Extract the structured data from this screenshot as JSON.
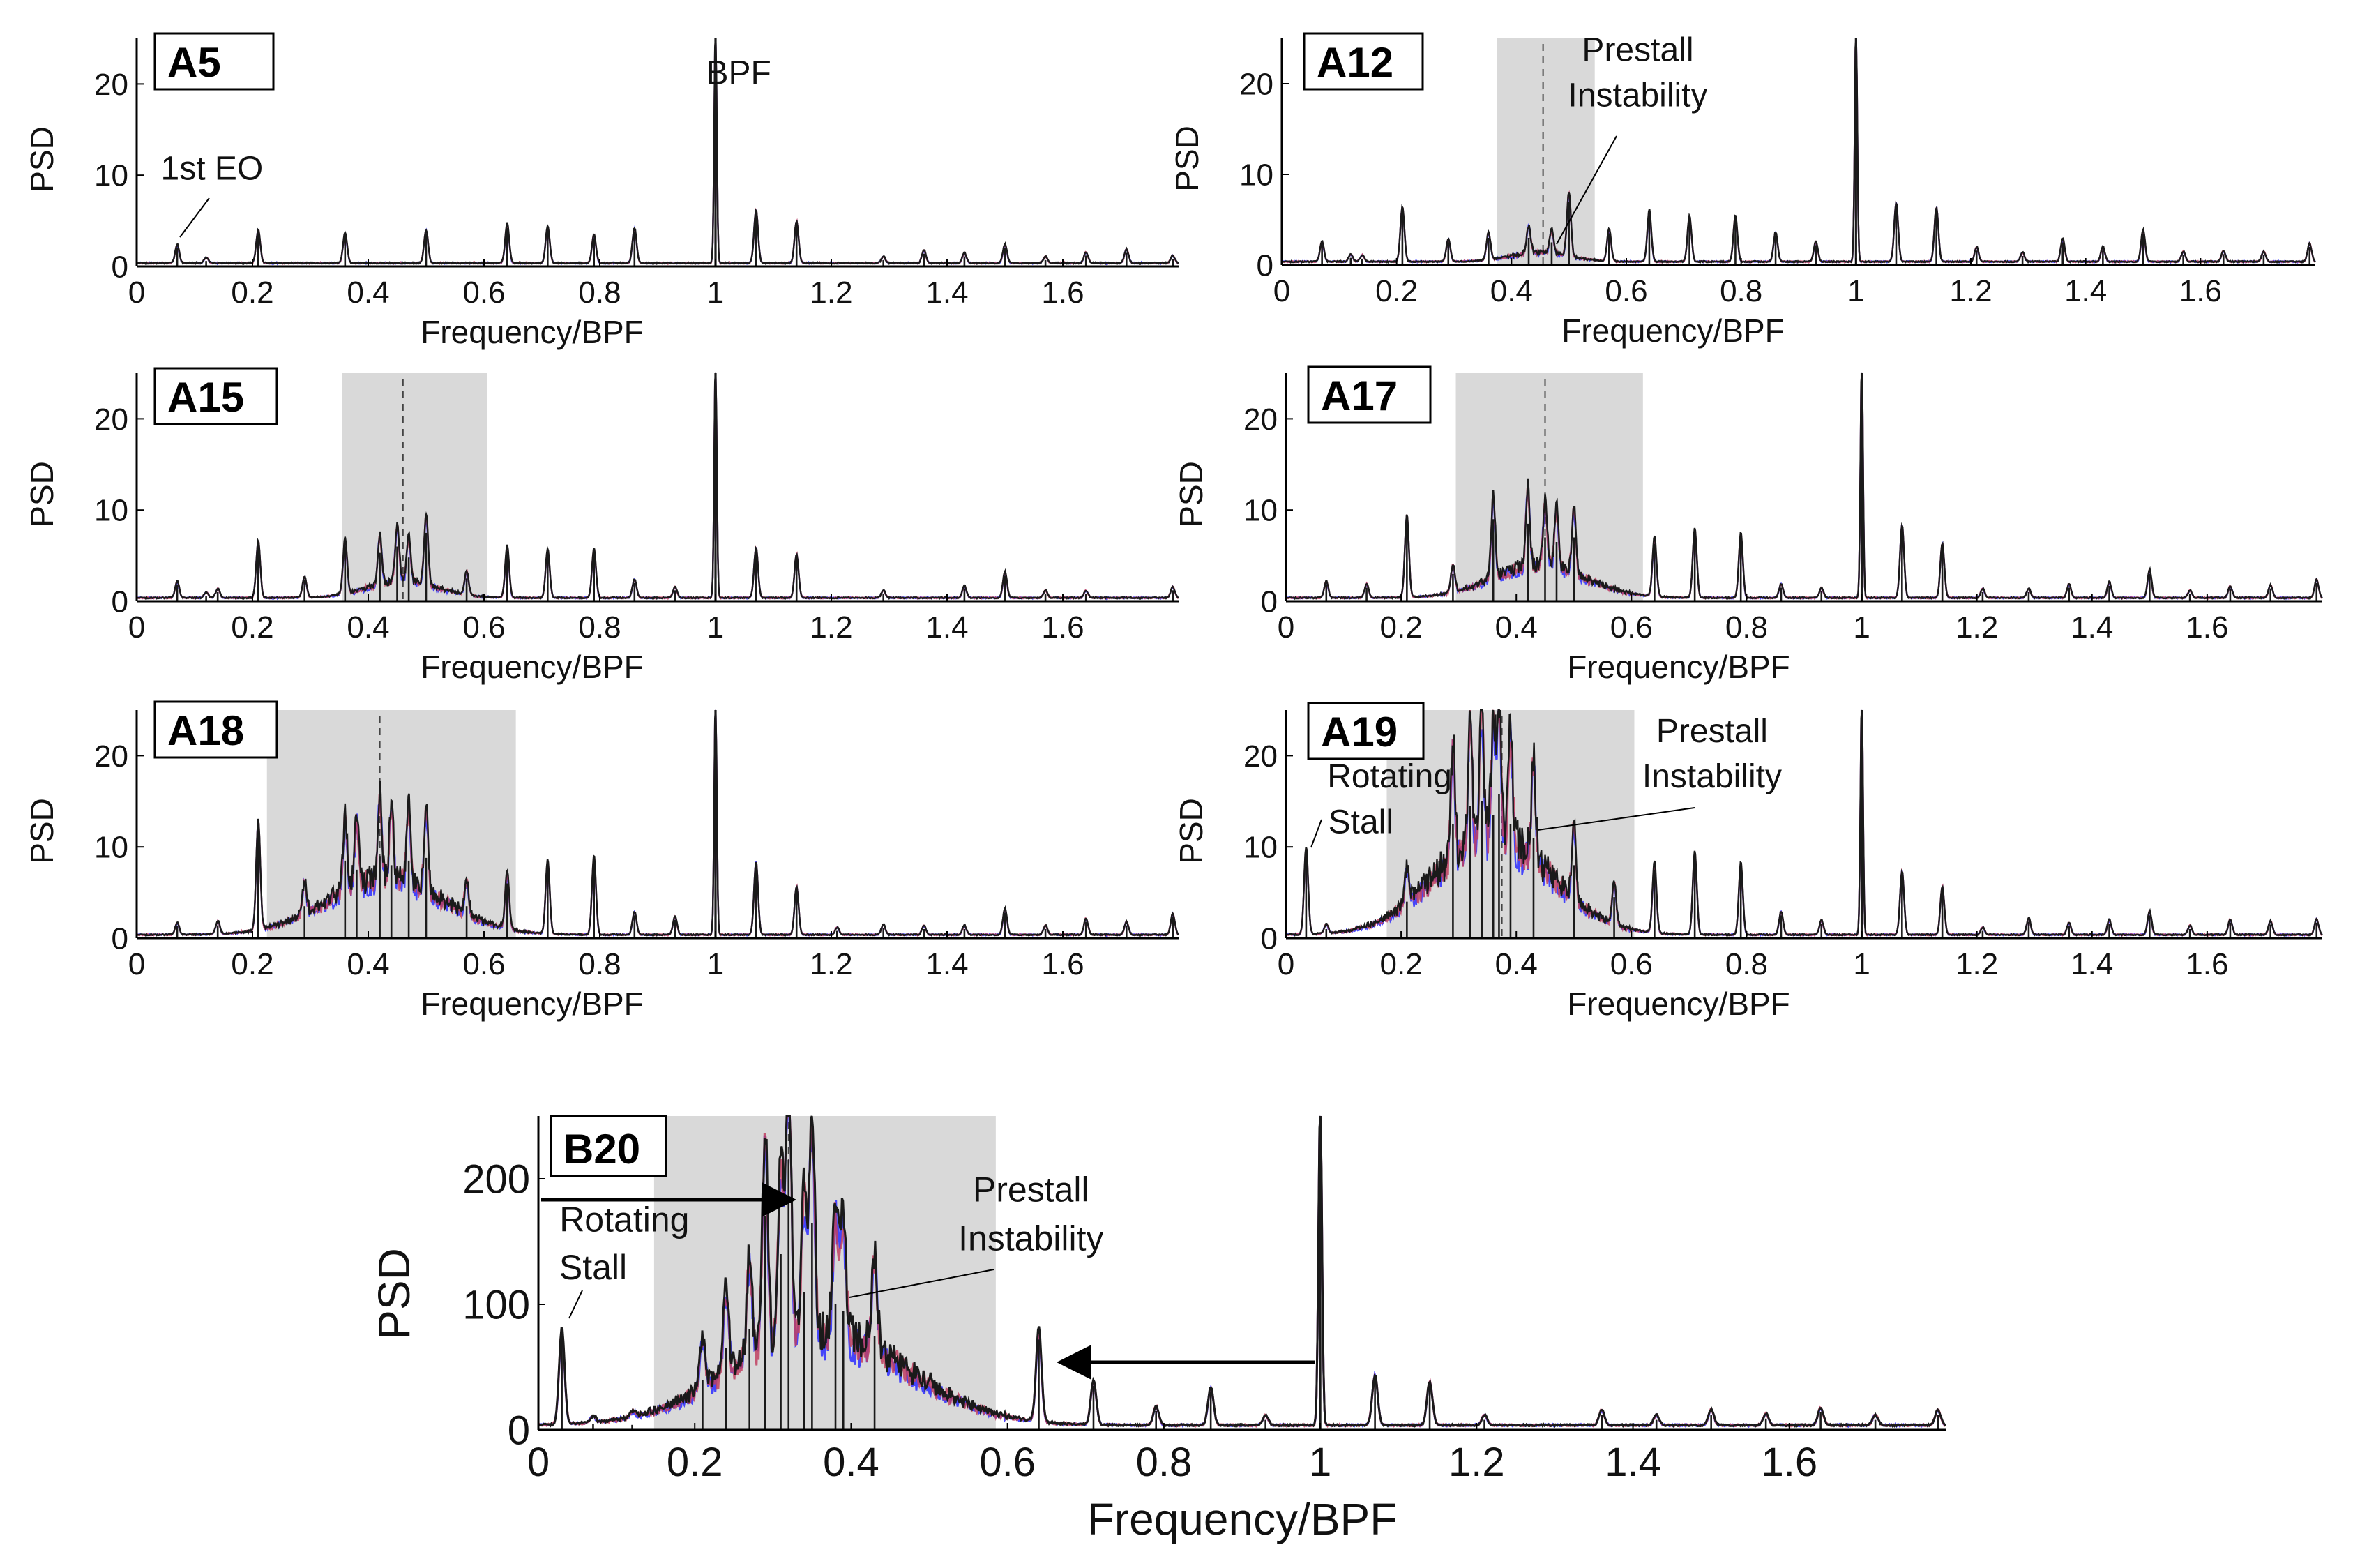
{
  "figure": {
    "background": "#ffffff",
    "region_color": "#d9d9d9",
    "trace_colors": [
      "#2a2aff",
      "#c04060",
      "#1a1a1a"
    ]
  },
  "chart_data": [
    {
      "id": "A5",
      "type": "line",
      "tag": "A5",
      "xlabel": "Frequency/BPF",
      "ylabel": "PSD",
      "xlim": [
        0,
        1.8
      ],
      "ylim": [
        0,
        25
      ],
      "xticks": [
        "0",
        "0.2",
        "0.4",
        "0.6",
        "0.8",
        "1",
        "1.2",
        "1.4",
        "1.6"
      ],
      "yticks": [
        "0",
        "10",
        "20"
      ],
      "spikes": [
        [
          0.07,
          2.0
        ],
        [
          0.12,
          0.6
        ],
        [
          0.21,
          3.6
        ],
        [
          0.36,
          3.3
        ],
        [
          0.5,
          3.6
        ],
        [
          0.64,
          4.2
        ],
        [
          0.71,
          4.0
        ],
        [
          0.79,
          3.1
        ],
        [
          0.86,
          3.8
        ],
        [
          1.0,
          26
        ],
        [
          1.07,
          5.8
        ],
        [
          1.14,
          4.6
        ],
        [
          1.29,
          0.7
        ],
        [
          1.36,
          1.4
        ],
        [
          1.43,
          1.1
        ],
        [
          1.5,
          2.0
        ],
        [
          1.57,
          0.7
        ],
        [
          1.64,
          1.2
        ],
        [
          1.71,
          1.5
        ],
        [
          1.79,
          0.8
        ]
      ],
      "hump": null,
      "shaded": null,
      "dashed": null,
      "annotations": [
        {
          "text": "BPF",
          "x": 1.04,
          "y": 20
        },
        {
          "text": "1st EO",
          "x": 0.13,
          "y": 9.5
        }
      ]
    },
    {
      "id": "A12",
      "type": "line",
      "tag": "A12",
      "xlabel": "Frequency/BPF",
      "ylabel": "PSD",
      "xlim": [
        0,
        1.8
      ],
      "ylim": [
        0,
        25
      ],
      "xticks": [
        "0",
        "0.2",
        "0.4",
        "0.6",
        "0.8",
        "1",
        "1.2",
        "1.4",
        "1.6"
      ],
      "yticks": [
        "0",
        "10",
        "20"
      ],
      "spikes": [
        [
          0.07,
          2.2
        ],
        [
          0.12,
          0.8
        ],
        [
          0.14,
          0.7
        ],
        [
          0.21,
          6.0
        ],
        [
          0.29,
          2.5
        ],
        [
          0.36,
          3.0
        ],
        [
          0.43,
          3.0
        ],
        [
          0.47,
          2.5
        ],
        [
          0.5,
          7.0
        ],
        [
          0.57,
          3.5
        ],
        [
          0.64,
          5.5
        ],
        [
          0.71,
          5.0
        ],
        [
          0.79,
          5.0
        ],
        [
          0.86,
          3.2
        ],
        [
          0.93,
          2.2
        ],
        [
          1.0,
          26
        ],
        [
          1.07,
          6.5
        ],
        [
          1.14,
          6.0
        ],
        [
          1.21,
          1.6
        ],
        [
          1.29,
          1.0
        ],
        [
          1.36,
          2.5
        ],
        [
          1.43,
          1.6
        ],
        [
          1.5,
          3.4
        ],
        [
          1.57,
          1.1
        ],
        [
          1.64,
          1.2
        ],
        [
          1.71,
          1.1
        ],
        [
          1.79,
          2.0
        ]
      ],
      "hump": {
        "center": 0.45,
        "width": 0.05,
        "height": 1.0
      },
      "shaded": [
        0.375,
        0.545
      ],
      "dashed": 0.455,
      "annotations": [
        {
          "text": "Prestall",
          "x": 0.62,
          "y": 22.5
        },
        {
          "text": "Instability",
          "x": 0.62,
          "y": 17.5
        }
      ]
    },
    {
      "id": "A15",
      "type": "line",
      "tag": "A15",
      "xlabel": "Frequency/BPF",
      "ylabel": "PSD",
      "xlim": [
        0,
        1.8
      ],
      "ylim": [
        0,
        25
      ],
      "xticks": [
        "0",
        "0.2",
        "0.4",
        "0.6",
        "0.8",
        "1",
        "1.2",
        "1.4",
        "1.6"
      ],
      "yticks": [
        "0",
        "10",
        "20"
      ],
      "spikes": [
        [
          0.07,
          1.8
        ],
        [
          0.12,
          0.6
        ],
        [
          0.14,
          1.0
        ],
        [
          0.21,
          6.2
        ],
        [
          0.29,
          2.3
        ],
        [
          0.36,
          6.0
        ],
        [
          0.42,
          5.3
        ],
        [
          0.45,
          6.0
        ],
        [
          0.47,
          4.8
        ],
        [
          0.5,
          7.5
        ],
        [
          0.57,
          2.5
        ],
        [
          0.64,
          5.5
        ],
        [
          0.71,
          5.3
        ],
        [
          0.79,
          5.3
        ],
        [
          0.86,
          2.0
        ],
        [
          0.93,
          1.2
        ],
        [
          1.0,
          26
        ],
        [
          1.07,
          5.5
        ],
        [
          1.14,
          4.8
        ],
        [
          1.29,
          0.8
        ],
        [
          1.43,
          1.3
        ],
        [
          1.5,
          2.8
        ],
        [
          1.57,
          0.8
        ],
        [
          1.64,
          0.8
        ],
        [
          1.79,
          1.2
        ]
      ],
      "hump": {
        "center": 0.46,
        "width": 0.06,
        "height": 1.8
      },
      "shaded": [
        0.355,
        0.605
      ],
      "dashed": 0.46,
      "annotations": []
    },
    {
      "id": "A17",
      "type": "line",
      "tag": "A17",
      "xlabel": "Frequency/BPF",
      "ylabel": "PSD",
      "xlim": [
        0,
        1.8
      ],
      "ylim": [
        0,
        25
      ],
      "xticks": [
        "0",
        "0.2",
        "0.4",
        "0.6",
        "0.8",
        "1",
        "1.2",
        "1.4",
        "1.6"
      ],
      "yticks": [
        "0",
        "10",
        "20"
      ],
      "spikes": [
        [
          0.07,
          1.8
        ],
        [
          0.14,
          1.5
        ],
        [
          0.21,
          9.0
        ],
        [
          0.29,
          3.0
        ],
        [
          0.36,
          9.0
        ],
        [
          0.42,
          8.5
        ],
        [
          0.45,
          7.0
        ],
        [
          0.47,
          6.5
        ],
        [
          0.5,
          7.0
        ],
        [
          0.64,
          6.3
        ],
        [
          0.71,
          7.5
        ],
        [
          0.79,
          7.0
        ],
        [
          0.86,
          1.5
        ],
        [
          0.93,
          1.1
        ],
        [
          1.0,
          26
        ],
        [
          1.07,
          8.0
        ],
        [
          1.14,
          6.0
        ],
        [
          1.21,
          1.0
        ],
        [
          1.29,
          1.0
        ],
        [
          1.36,
          1.5
        ],
        [
          1.43,
          1.7
        ],
        [
          1.5,
          3.0
        ],
        [
          1.57,
          0.8
        ],
        [
          1.64,
          1.3
        ],
        [
          1.71,
          1.4
        ],
        [
          1.79,
          2.0
        ]
      ],
      "hump": {
        "center": 0.44,
        "width": 0.08,
        "height": 3.5
      },
      "shaded": [
        0.295,
        0.62
      ],
      "dashed": 0.45,
      "annotations": []
    },
    {
      "id": "A18",
      "type": "line",
      "tag": "A18",
      "xlabel": "Frequency/BPF",
      "ylabel": "PSD",
      "xlim": [
        0,
        1.8
      ],
      "ylim": [
        0,
        25
      ],
      "xticks": [
        "0",
        "0.2",
        "0.4",
        "0.6",
        "0.8",
        "1",
        "1.2",
        "1.4",
        "1.6"
      ],
      "yticks": [
        "0",
        "10",
        "20"
      ],
      "spikes": [
        [
          0.07,
          1.3
        ],
        [
          0.14,
          1.4
        ],
        [
          0.21,
          12.0
        ],
        [
          0.29,
          3.5
        ],
        [
          0.36,
          8.5
        ],
        [
          0.38,
          7.5
        ],
        [
          0.42,
          9.0
        ],
        [
          0.44,
          8.0
        ],
        [
          0.47,
          8.5
        ],
        [
          0.5,
          8.8
        ],
        [
          0.57,
          3.5
        ],
        [
          0.64,
          6.0
        ],
        [
          0.71,
          8.0
        ],
        [
          0.79,
          8.5
        ],
        [
          0.86,
          2.5
        ],
        [
          0.93,
          2.0
        ],
        [
          1.0,
          26
        ],
        [
          1.07,
          8.0
        ],
        [
          1.14,
          5.3
        ],
        [
          1.21,
          0.8
        ],
        [
          1.29,
          1.1
        ],
        [
          1.36,
          1.0
        ],
        [
          1.43,
          1.0
        ],
        [
          1.5,
          2.8
        ],
        [
          1.57,
          1.0
        ],
        [
          1.64,
          1.8
        ],
        [
          1.71,
          1.4
        ],
        [
          1.79,
          2.3
        ]
      ],
      "hump": {
        "center": 0.43,
        "width": 0.1,
        "height": 6.0
      },
      "shaded": [
        0.225,
        0.655
      ],
      "dashed": 0.42,
      "annotations": []
    },
    {
      "id": "A19",
      "type": "line",
      "tag": "A19",
      "xlabel": "Frequency/BPF",
      "ylabel": "PSD",
      "xlim": [
        0,
        1.8
      ],
      "ylim": [
        0,
        25
      ],
      "xticks": [
        "0",
        "0.2",
        "0.4",
        "0.6",
        "0.8",
        "1",
        "1.2",
        "1.4",
        "1.6"
      ],
      "yticks": [
        "0",
        "10",
        "20"
      ],
      "spikes": [
        [
          0.035,
          9.5
        ],
        [
          0.07,
          1.0
        ],
        [
          0.21,
          4.0
        ],
        [
          0.29,
          12.5
        ],
        [
          0.32,
          14.5
        ],
        [
          0.34,
          15.0
        ],
        [
          0.36,
          13.5
        ],
        [
          0.37,
          15.8
        ],
        [
          0.39,
          12.5
        ],
        [
          0.43,
          11.0
        ],
        [
          0.5,
          8.0
        ],
        [
          0.57,
          4.5
        ],
        [
          0.64,
          7.5
        ],
        [
          0.71,
          9.0
        ],
        [
          0.79,
          7.8
        ],
        [
          0.86,
          2.5
        ],
        [
          0.93,
          1.6
        ],
        [
          1.0,
          26
        ],
        [
          1.07,
          7.0
        ],
        [
          1.14,
          5.3
        ],
        [
          1.21,
          0.8
        ],
        [
          1.29,
          1.8
        ],
        [
          1.36,
          1.3
        ],
        [
          1.43,
          1.6
        ],
        [
          1.5,
          2.5
        ],
        [
          1.57,
          1.0
        ],
        [
          1.64,
          1.7
        ],
        [
          1.71,
          1.5
        ],
        [
          1.79,
          1.7
        ]
      ],
      "hump": {
        "center": 0.36,
        "width": 0.1,
        "height": 10.5
      },
      "shaded": [
        0.175,
        0.605
      ],
      "dashed": 0.375,
      "annotations": [
        {
          "text": "Rotating",
          "x": 0.18,
          "y": 16.5
        },
        {
          "text": "Stall",
          "x": 0.13,
          "y": 11.5
        },
        {
          "text": "Prestall",
          "x": 0.74,
          "y": 21.5
        },
        {
          "text": "Instability",
          "x": 0.74,
          "y": 16.5
        }
      ]
    },
    {
      "id": "B20",
      "type": "line",
      "tag": "B20",
      "xlabel": "Frequency/BPF",
      "ylabel": "PSD",
      "xlim": [
        0,
        1.8
      ],
      "ylim": [
        0,
        250
      ],
      "xticks": [
        "0",
        "0.2",
        "0.4",
        "0.6",
        "0.8",
        "1",
        "1.2",
        "1.4",
        "1.6"
      ],
      "yticks": [
        "0",
        "100",
        "200"
      ],
      "spikes": [
        [
          0.03,
          75
        ],
        [
          0.07,
          5
        ],
        [
          0.12,
          4
        ],
        [
          0.21,
          40
        ],
        [
          0.24,
          65
        ],
        [
          0.27,
          80
        ],
        [
          0.29,
          170
        ],
        [
          0.31,
          140
        ],
        [
          0.32,
          215
        ],
        [
          0.34,
          110
        ],
        [
          0.35,
          165
        ],
        [
          0.38,
          100
        ],
        [
          0.39,
          95
        ],
        [
          0.43,
          75
        ],
        [
          0.64,
          72
        ],
        [
          0.71,
          35
        ],
        [
          0.79,
          15
        ],
        [
          0.86,
          30
        ],
        [
          0.93,
          8
        ],
        [
          1.0,
          260
        ],
        [
          1.07,
          40
        ],
        [
          1.14,
          35
        ],
        [
          1.21,
          8
        ],
        [
          1.36,
          12
        ],
        [
          1.43,
          8
        ],
        [
          1.5,
          12
        ],
        [
          1.57,
          9
        ],
        [
          1.64,
          14
        ],
        [
          1.71,
          8
        ],
        [
          1.79,
          12
        ]
      ],
      "hump": {
        "center": 0.36,
        "width": 0.11,
        "height": 72
      },
      "shaded": [
        0.148,
        0.585
      ],
      "dashed": 0.32,
      "annotations": [
        {
          "text": "Rotating",
          "x": 0.11,
          "y": 158
        },
        {
          "text": "Stall",
          "x": 0.07,
          "y": 120
        },
        {
          "text": "Prestall",
          "x": 0.63,
          "y": 182
        },
        {
          "text": "Instability",
          "x": 0.63,
          "y": 143
        }
      ]
    }
  ]
}
